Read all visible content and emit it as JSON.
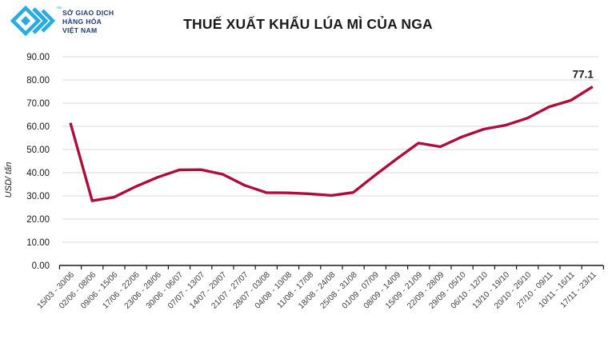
{
  "logo": {
    "text_lines": [
      "SỞ GIAO DỊCH",
      "HÀNG HÓA",
      "VIỆT NAM"
    ],
    "trademark": "™",
    "brand_cyan": "#29ABE2",
    "brand_navy": "#223A70"
  },
  "chart_data": {
    "type": "line",
    "title": "THUẾ XUẤT KHẨU LÚA MÌ CỦA NGA",
    "ylabel": "USD/ tấn",
    "xlabel": "",
    "ylim": [
      0,
      90
    ],
    "ytick_step": 10,
    "ytick_format_decimals": 2,
    "grid": true,
    "legend": "none",
    "line_color": "#AE0E3C",
    "grid_color": "#D8D8D8",
    "axis_color": "#1a1a1a",
    "categories": [
      "15/03 - 30/06",
      "02/06 - 08/06",
      "09/06 - 15/06",
      "17/06 - 22/06",
      "23/06 - 28/06",
      "30/06 - 06/07",
      "07/07 - 13/07",
      "14/07 - 20/07",
      "21/07 - 27/07",
      "28/07 - 03/08",
      "04/08 - 10/08",
      "11/08 - 17/08",
      "18/08 - 24/08",
      "25/08 - 31/08",
      "01/09 - 07/09",
      "08/09 - 14/09",
      "15/09 - 21/09",
      "22/09 - 28/09",
      "29/09 - 05/10",
      "06/10 - 12/10",
      "13/10 - 19/10",
      "20/10 - 26/10",
      "27/10 - 09/11",
      "10/11 - 16/11",
      "17/11 - 23/11"
    ],
    "values": [
      61.5,
      27.9,
      29.4,
      34.0,
      38.0,
      41.2,
      41.3,
      39.3,
      34.6,
      31.4,
      31.3,
      30.9,
      30.2,
      31.5,
      38.9,
      46.0,
      52.8,
      51.2,
      55.5,
      58.8,
      60.5,
      63.5,
      68.4,
      71.2,
      77.1
    ],
    "end_label": "77.1"
  }
}
